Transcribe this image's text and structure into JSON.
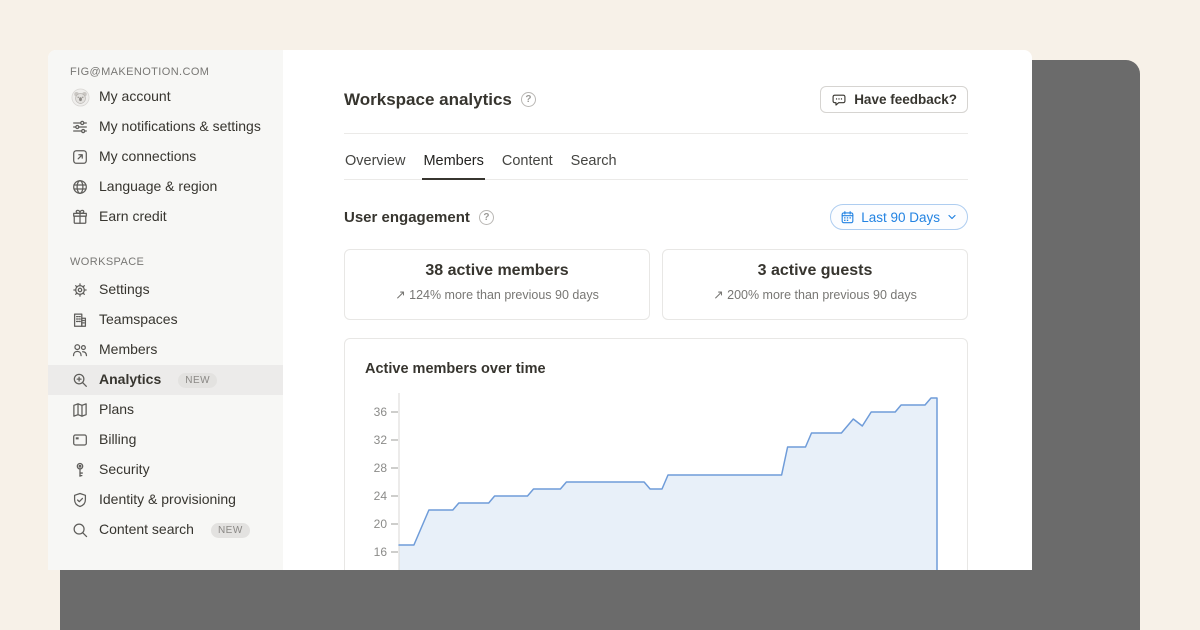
{
  "colors": {
    "accent_blue": "#2383e2",
    "traffic_close": "#e2574e",
    "traffic_minimize": "#eebd45",
    "traffic_zoom": "#57b84e",
    "chart_line": "#6f9cd9",
    "chart_fill": "#e8f0f9"
  },
  "window": {
    "traffic_lights": [
      {
        "name": "close",
        "color": "#e2574e"
      },
      {
        "name": "minimize",
        "color": "#eebd45"
      },
      {
        "name": "zoom",
        "color": "#57b84e"
      }
    ]
  },
  "sidebar": {
    "account_email": "FIG@MAKENOTION.COM",
    "account_items": [
      {
        "label": "My account",
        "icon": "avatar"
      },
      {
        "label": "My notifications & settings",
        "icon": "sliders"
      },
      {
        "label": "My connections",
        "icon": "arrow-up-right-box"
      },
      {
        "label": "Language & region",
        "icon": "globe"
      },
      {
        "label": "Earn credit",
        "icon": "gift"
      }
    ],
    "workspace_label": "WORKSPACE",
    "workspace_items": [
      {
        "label": "Settings",
        "icon": "gear"
      },
      {
        "label": "Teamspaces",
        "icon": "building"
      },
      {
        "label": "Members",
        "icon": "people"
      },
      {
        "label": "Analytics",
        "icon": "magnifier-plus",
        "badge": "NEW",
        "active": true
      },
      {
        "label": "Plans",
        "icon": "map"
      },
      {
        "label": "Billing",
        "icon": "credit-card"
      },
      {
        "label": "Security",
        "icon": "key"
      },
      {
        "label": "Identity & provisioning",
        "icon": "shield-check"
      },
      {
        "label": "Content search",
        "icon": "magnifier",
        "badge": "NEW"
      }
    ]
  },
  "header": {
    "title": "Workspace analytics",
    "help_glyph": "?",
    "feedback_button": "Have feedback?"
  },
  "tabs": [
    {
      "label": "Overview"
    },
    {
      "label": "Members",
      "active": true
    },
    {
      "label": "Content"
    },
    {
      "label": "Search"
    }
  ],
  "engagement": {
    "title": "User engagement",
    "help_glyph": "?",
    "range_button": "Last 90 Days",
    "cards": [
      {
        "value": "38 active members",
        "delta": "↗ 124% more than previous 90 days"
      },
      {
        "value": "3 active guests",
        "delta": "↗ 200% more than previous 90 days"
      }
    ]
  },
  "chart_data": {
    "type": "area",
    "title": "Active members over time",
    "ylabel": "",
    "xlabel": "",
    "x_range_days": 90,
    "yticks": [
      36,
      32,
      28,
      24,
      20,
      16
    ],
    "ylim": [
      14,
      39
    ],
    "grid": false,
    "line_color": "#6f9cd9",
    "fill_color": "#e8f0f9",
    "series": [
      {
        "name": "Active members",
        "points": [
          [
            0,
            17
          ],
          [
            2.5,
            17
          ],
          [
            5,
            22
          ],
          [
            9,
            22
          ],
          [
            10,
            23
          ],
          [
            15,
            23
          ],
          [
            16,
            24
          ],
          [
            21.5,
            24
          ],
          [
            22.5,
            25
          ],
          [
            27,
            25
          ],
          [
            28,
            26
          ],
          [
            41,
            26
          ],
          [
            42,
            25
          ],
          [
            44,
            25
          ],
          [
            45,
            27
          ],
          [
            64,
            27
          ],
          [
            65,
            31
          ],
          [
            68,
            31
          ],
          [
            69,
            33
          ],
          [
            74,
            33
          ],
          [
            76,
            35
          ],
          [
            77.5,
            34
          ],
          [
            79,
            36
          ],
          [
            83,
            36
          ],
          [
            84,
            37
          ],
          [
            88,
            37
          ],
          [
            89,
            38
          ],
          [
            90,
            38
          ]
        ]
      }
    ]
  }
}
